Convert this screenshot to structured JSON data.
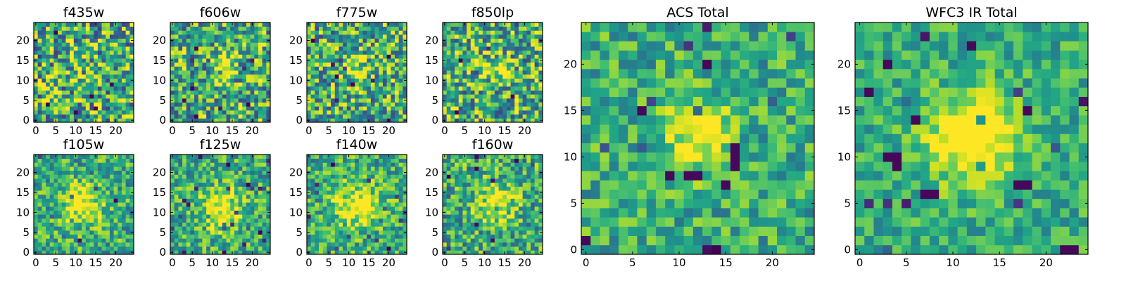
{
  "chart_data": [
    {
      "type": "heatmap",
      "title": "f435w",
      "size": 25,
      "xticks": [
        0,
        5,
        10,
        15,
        20
      ],
      "yticks": [
        0,
        5,
        10,
        15,
        20
      ],
      "xlim": [
        -0.5,
        24.5
      ],
      "ylim": [
        -0.5,
        24.5
      ],
      "colormap": "viridis",
      "peak": [
        12,
        12
      ],
      "peak_strength": 0.05,
      "peak_width": 3,
      "noise": 0.55,
      "seed": 11
    },
    {
      "type": "heatmap",
      "title": "f606w",
      "size": 25,
      "xticks": [
        0,
        5,
        10,
        15,
        20
      ],
      "yticks": [
        0,
        5,
        10,
        15,
        20
      ],
      "xlim": [
        -0.5,
        24.5
      ],
      "ylim": [
        -0.5,
        24.5
      ],
      "colormap": "viridis",
      "peak": [
        13,
        13
      ],
      "peak_strength": 0.35,
      "peak_width": 2.2,
      "noise": 0.5,
      "seed": 23
    },
    {
      "type": "heatmap",
      "title": "f775w",
      "size": 25,
      "xticks": [
        0,
        5,
        10,
        15,
        20
      ],
      "yticks": [
        0,
        5,
        10,
        15,
        20
      ],
      "xlim": [
        -0.5,
        24.5
      ],
      "ylim": [
        -0.5,
        24.5
      ],
      "colormap": "viridis",
      "peak": [
        12,
        13
      ],
      "peak_strength": 0.3,
      "peak_width": 2.5,
      "noise": 0.5,
      "seed": 37
    },
    {
      "type": "heatmap",
      "title": "f850lp",
      "size": 25,
      "xticks": [
        0,
        5,
        10,
        15,
        20
      ],
      "yticks": [
        0,
        5,
        10,
        15,
        20
      ],
      "xlim": [
        -0.5,
        24.5
      ],
      "ylim": [
        -0.5,
        24.5
      ],
      "colormap": "viridis",
      "peak": [
        13,
        13
      ],
      "peak_strength": 0.3,
      "peak_width": 2.5,
      "noise": 0.5,
      "seed": 41
    },
    {
      "type": "heatmap",
      "title": "f105w",
      "size": 25,
      "xticks": [
        0,
        5,
        10,
        15,
        20
      ],
      "yticks": [
        0,
        5,
        10,
        15,
        20
      ],
      "xlim": [
        -0.5,
        24.5
      ],
      "ylim": [
        -0.5,
        24.5
      ],
      "colormap": "viridis",
      "peak": [
        12,
        12
      ],
      "peak_strength": 0.45,
      "peak_width": 3.5,
      "noise": 0.35,
      "seed": 53
    },
    {
      "type": "heatmap",
      "title": "f125w",
      "size": 25,
      "xticks": [
        0,
        5,
        10,
        15,
        20
      ],
      "yticks": [
        0,
        5,
        10,
        15,
        20
      ],
      "xlim": [
        -0.5,
        24.5
      ],
      "ylim": [
        -0.5,
        24.5
      ],
      "colormap": "viridis",
      "peak": [
        12,
        11
      ],
      "peak_strength": 0.45,
      "peak_width": 3.5,
      "noise": 0.35,
      "seed": 67
    },
    {
      "type": "heatmap",
      "title": "f140w",
      "size": 25,
      "xticks": [
        0,
        5,
        10,
        15,
        20
      ],
      "yticks": [
        0,
        5,
        10,
        15,
        20
      ],
      "xlim": [
        -0.5,
        24.5
      ],
      "ylim": [
        -0.5,
        24.5
      ],
      "colormap": "viridis",
      "peak": [
        12,
        12
      ],
      "peak_strength": 0.4,
      "peak_width": 4,
      "noise": 0.35,
      "seed": 71
    },
    {
      "type": "heatmap",
      "title": "f160w",
      "size": 25,
      "xticks": [
        0,
        5,
        10,
        15,
        20
      ],
      "yticks": [
        0,
        5,
        10,
        15,
        20
      ],
      "xlim": [
        -0.5,
        24.5
      ],
      "ylim": [
        -0.5,
        24.5
      ],
      "colormap": "viridis",
      "peak": [
        13,
        13
      ],
      "peak_strength": 0.45,
      "peak_width": 3,
      "noise": 0.4,
      "seed": 89
    },
    {
      "type": "heatmap",
      "title": "ACS Total",
      "size": 25,
      "xticks": [
        0,
        5,
        10,
        15,
        20
      ],
      "yticks": [
        0,
        5,
        10,
        15,
        20
      ],
      "xlim": [
        -0.5,
        24.5
      ],
      "ylim": [
        -0.5,
        24.5
      ],
      "colormap": "viridis",
      "peak": [
        12,
        12
      ],
      "peak_strength": 0.45,
      "peak_width": 2.5,
      "noise": 0.3,
      "seed": 97,
      "dark_cells": [
        [
          16,
          11
        ],
        [
          16,
          10
        ],
        [
          16,
          9
        ],
        [
          11,
          8
        ],
        [
          12,
          8
        ],
        [
          6,
          15
        ],
        [
          13,
          20
        ],
        [
          0,
          1
        ],
        [
          15,
          7
        ],
        [
          9,
          8
        ]
      ]
    },
    {
      "type": "heatmap",
      "title": "WFC3 IR Total",
      "size": 25,
      "xticks": [
        0,
        5,
        10,
        15,
        20
      ],
      "yticks": [
        0,
        5,
        10,
        15,
        20
      ],
      "xlim": [
        -0.5,
        24.5
      ],
      "ylim": [
        -0.5,
        24.5
      ],
      "colormap": "viridis",
      "peak": [
        12,
        12
      ],
      "peak_strength": 0.6,
      "peak_width": 3.2,
      "noise": 0.25,
      "seed": 103,
      "dark_cells": [
        [
          7,
          6
        ],
        [
          8,
          6
        ],
        [
          17,
          7
        ],
        [
          18,
          7
        ],
        [
          22,
          0
        ],
        [
          23,
          0
        ],
        [
          3,
          10
        ],
        [
          4,
          10
        ],
        [
          4,
          9
        ],
        [
          6,
          14
        ],
        [
          3,
          20
        ],
        [
          1,
          17
        ],
        [
          18,
          15
        ],
        [
          12,
          22
        ]
      ]
    }
  ]
}
